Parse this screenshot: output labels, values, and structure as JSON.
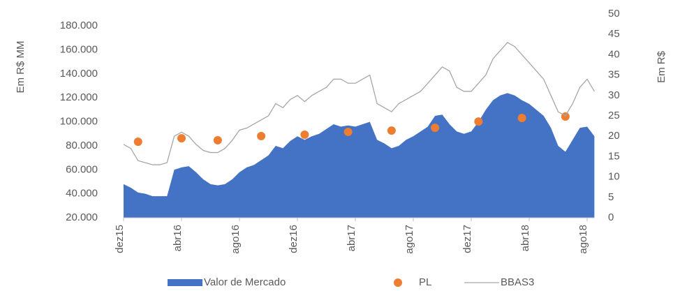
{
  "chart_data": {
    "type": "combo",
    "categories": [
      "dez15",
      null,
      null,
      null,
      null,
      null,
      null,
      null,
      "abr16",
      null,
      null,
      null,
      null,
      null,
      null,
      null,
      "ago16",
      null,
      null,
      null,
      null,
      null,
      null,
      null,
      "dez16",
      null,
      null,
      null,
      null,
      null,
      null,
      null,
      "abr17",
      null,
      null,
      null,
      null,
      null,
      null,
      null,
      "ago17",
      null,
      null,
      null,
      null,
      null,
      null,
      null,
      "dez17",
      null,
      null,
      null,
      null,
      null,
      null,
      null,
      "abr18",
      null,
      null,
      null,
      null,
      null,
      null,
      null,
      "ago18",
      null
    ],
    "series": [
      {
        "name": "Valor de Mercado",
        "type": "area",
        "color": "#4472c4",
        "axis": "y",
        "values": [
          48000,
          45000,
          41000,
          40000,
          38000,
          38000,
          38000,
          60000,
          62000,
          63000,
          58000,
          52000,
          48000,
          47000,
          48000,
          52000,
          58000,
          62000,
          64000,
          68000,
          72000,
          80000,
          78000,
          84000,
          88000,
          85000,
          88000,
          90000,
          94000,
          98000,
          96000,
          97000,
          96000,
          98000,
          100000,
          85000,
          82000,
          78000,
          80000,
          85000,
          88000,
          92000,
          96000,
          105000,
          106000,
          98000,
          92000,
          90000,
          92000,
          100000,
          110000,
          118000,
          122000,
          124000,
          122000,
          118000,
          115000,
          110000,
          105000,
          95000,
          80000,
          75000,
          85000,
          95000,
          96000,
          88000
        ]
      },
      {
        "name": "PL",
        "type": "scatter",
        "color": "#ed7d31",
        "axis": "y",
        "values": [
          null,
          null,
          83400,
          null,
          null,
          null,
          null,
          null,
          86300,
          null,
          null,
          null,
          null,
          84600,
          null,
          null,
          null,
          null,
          null,
          88100,
          null,
          null,
          null,
          null,
          null,
          89300,
          null,
          null,
          null,
          null,
          null,
          91600,
          null,
          null,
          null,
          null,
          null,
          92700,
          null,
          null,
          null,
          null,
          null,
          95000,
          null,
          null,
          null,
          null,
          null,
          100300,
          null,
          null,
          null,
          null,
          null,
          103200,
          null,
          null,
          null,
          null,
          null,
          104400,
          null,
          null,
          null,
          null
        ]
      },
      {
        "name": "BBAS3",
        "type": "line",
        "color": "#a6a6a6",
        "axis": "y2",
        "values": [
          18,
          17,
          14,
          13.5,
          13,
          13,
          13.5,
          20,
          21,
          20,
          18,
          16.5,
          16,
          16,
          17,
          19,
          21.5,
          22,
          23,
          24,
          25,
          28,
          27,
          29,
          30,
          28.5,
          30,
          31,
          32,
          34,
          34,
          33,
          33,
          34,
          35,
          28,
          27,
          26,
          28,
          29,
          30,
          31,
          33,
          35,
          37,
          36,
          32,
          31,
          31,
          33,
          35,
          39,
          41,
          43,
          42,
          40,
          38,
          36,
          34,
          30,
          26,
          25,
          28,
          32,
          34,
          31
        ]
      }
    ],
    "ylabel": "Em R$ MM",
    "y2label": "Em R$",
    "ylim": [
      20000,
      190000
    ],
    "yticks": [
      {
        "value": 20000,
        "label": "20.000"
      },
      {
        "value": 40000,
        "label": "40.000"
      },
      {
        "value": 60000,
        "label": "60.000"
      },
      {
        "value": 80000,
        "label": "80.000"
      },
      {
        "value": 100000,
        "label": "100.000"
      },
      {
        "value": 120000,
        "label": "120.000"
      },
      {
        "value": 140000,
        "label": "140.000"
      },
      {
        "value": 160000,
        "label": "160.000"
      },
      {
        "value": 180000,
        "label": "180.000"
      }
    ],
    "y2lim": [
      0,
      50
    ],
    "y2ticks": [
      0,
      5,
      10,
      15,
      20,
      25,
      30,
      35,
      40,
      45,
      50
    ],
    "grid": false,
    "legend": "bottom"
  }
}
